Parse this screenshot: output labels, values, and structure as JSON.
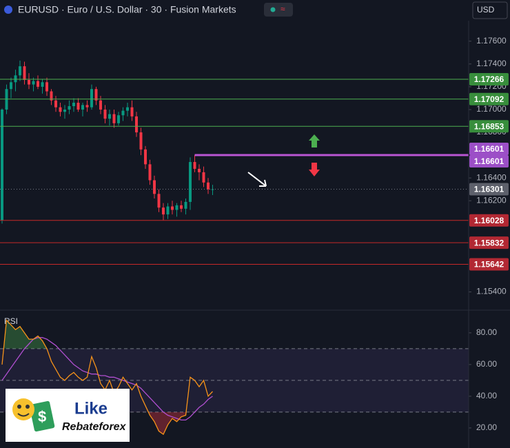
{
  "header": {
    "title": "EURUSD · Euro / U.S. Dollar · 30 · Fusion Markets",
    "currency": "USD"
  },
  "logo": {
    "line1": "Like",
    "line2": "Rebateforex"
  },
  "chart_data": [
    {
      "type": "candlestick",
      "up_color": "#089981",
      "down_color": "#f23645",
      "open": [
        1.1603,
        1.17,
        1.1718,
        1.1724,
        1.173,
        1.1738,
        1.1726,
        1.1722,
        1.1725,
        1.172,
        1.1724,
        1.1716,
        1.1708,
        1.1702,
        1.1698,
        1.17,
        1.1703,
        1.1706,
        1.17,
        1.1704,
        1.1702,
        1.1718,
        1.1708,
        1.17,
        1.1692,
        1.1696,
        1.1688,
        1.1695,
        1.1699,
        1.1702,
        1.1694,
        1.168,
        1.1665,
        1.1652,
        1.1638,
        1.1626,
        1.1614,
        1.1608,
        1.1615,
        1.1612,
        1.1616,
        1.1613,
        1.1619,
        1.1654,
        1.1648,
        1.1645,
        1.1636,
        1.163
      ],
      "high": [
        1.1701,
        1.1722,
        1.1728,
        1.1735,
        1.1743,
        1.1742,
        1.1732,
        1.1728,
        1.173,
        1.1727,
        1.1728,
        1.1718,
        1.1712,
        1.1706,
        1.1704,
        1.1708,
        1.171,
        1.171,
        1.1706,
        1.1708,
        1.1722,
        1.172,
        1.1712,
        1.1704,
        1.17,
        1.17,
        1.1698,
        1.1702,
        1.1706,
        1.1708,
        1.1698,
        1.1684,
        1.1668,
        1.1656,
        1.1642,
        1.163,
        1.1618,
        1.1618,
        1.162,
        1.1618,
        1.162,
        1.1622,
        1.1658,
        1.16601,
        1.1652,
        1.165,
        1.164,
        1.1634
      ],
      "low": [
        1.16,
        1.1696,
        1.171,
        1.1716,
        1.1725,
        1.1722,
        1.1718,
        1.1716,
        1.1718,
        1.1714,
        1.1712,
        1.1704,
        1.1698,
        1.1694,
        1.1692,
        1.1696,
        1.1698,
        1.1698,
        1.1694,
        1.1698,
        1.17,
        1.1704,
        1.1696,
        1.1688,
        1.1686,
        1.1684,
        1.1686,
        1.169,
        1.1694,
        1.169,
        1.1676,
        1.166,
        1.1648,
        1.1634,
        1.1622,
        1.161,
        1.1603,
        1.1604,
        1.1608,
        1.1606,
        1.161,
        1.1608,
        1.1612,
        1.1645,
        1.1638,
        1.1632,
        1.1626,
        1.1625
      ],
      "close": [
        1.17,
        1.1718,
        1.1724,
        1.173,
        1.1738,
        1.1726,
        1.1722,
        1.1725,
        1.172,
        1.1724,
        1.1716,
        1.1708,
        1.1702,
        1.1698,
        1.17,
        1.1703,
        1.1706,
        1.17,
        1.1704,
        1.1702,
        1.1718,
        1.1708,
        1.17,
        1.1692,
        1.1696,
        1.1688,
        1.1695,
        1.1699,
        1.1702,
        1.1694,
        1.168,
        1.1665,
        1.1652,
        1.1638,
        1.1626,
        1.1614,
        1.1608,
        1.1615,
        1.1612,
        1.1616,
        1.1613,
        1.1619,
        1.1654,
        1.1648,
        1.1645,
        1.1636,
        1.163,
        1.16301
      ],
      "ylim": [
        1.1524,
        1.1778
      ],
      "yticks": [
        {
          "value": 1.176,
          "label": "1.17600"
        },
        {
          "value": 1.174,
          "label": "1.17400"
        },
        {
          "value": 1.172,
          "label": "1.17200"
        },
        {
          "value": 1.17,
          "label": "1.17000"
        },
        {
          "value": 1.168,
          "label": "1.16800"
        },
        {
          "value": 1.164,
          "label": "1.16400"
        },
        {
          "value": 1.162,
          "label": "1.16200"
        },
        {
          "value": 1.154,
          "label": "1.15400"
        }
      ],
      "levels": [
        {
          "value": 1.17266,
          "label": "1.17266",
          "color": "#4caf50",
          "badge": "#388e3c",
          "style": "solid"
        },
        {
          "value": 1.17092,
          "label": "1.17092",
          "color": "#4caf50",
          "badge": "#388e3c",
          "style": "solid"
        },
        {
          "value": 1.16853,
          "label": "1.16853",
          "color": "#4caf50",
          "badge": "#388e3c",
          "style": "solid"
        },
        {
          "value": 1.16601,
          "label": "1.16601",
          "color": "#ba55d3",
          "badge": "#9c4fc7",
          "style": "thick"
        },
        {
          "value": 1.16301,
          "label": "1.16301",
          "color": "#787b86",
          "badge": "#5d606b",
          "style": "dotted"
        },
        {
          "value": 1.16028,
          "label": "1.16028",
          "color": "#c62828",
          "badge": "#b22833",
          "style": "solid"
        },
        {
          "value": 1.15832,
          "label": "1.15832",
          "color": "#c62828",
          "badge": "#b22833",
          "style": "solid"
        },
        {
          "value": 1.15642,
          "label": "1.15642",
          "color": "#c62828",
          "badge": "#b22833",
          "style": "solid"
        }
      ]
    },
    {
      "type": "line",
      "title": "RSI",
      "ylim": [
        11.7,
        94.3
      ],
      "yticks": [
        {
          "value": 80,
          "label": "80.00"
        },
        {
          "value": 60,
          "label": "60.00"
        },
        {
          "value": 40,
          "label": "40.00"
        },
        {
          "value": 20,
          "label": "20.00"
        }
      ],
      "band": [
        30,
        70
      ],
      "midline": 50,
      "series": [
        {
          "color": "#f7931a",
          "values": [
            60,
            88,
            85,
            82,
            84,
            80,
            76,
            76,
            78,
            75,
            70,
            62,
            57,
            52,
            50,
            53,
            55,
            52,
            50,
            52,
            65,
            58,
            48,
            44,
            50,
            42,
            46,
            52,
            48,
            44,
            48,
            40,
            34,
            28,
            24,
            18,
            16,
            22,
            26,
            24,
            27,
            28,
            52,
            50,
            46,
            50,
            40,
            43
          ]
        },
        {
          "color": "#b04fd0",
          "values": [
            50,
            54,
            58,
            62,
            66,
            70,
            73,
            76,
            77,
            77,
            76,
            74,
            72,
            69,
            66,
            63,
            60,
            58,
            56,
            55,
            54,
            54,
            53,
            53,
            52,
            52,
            51,
            50,
            49,
            48,
            47,
            45,
            42,
            39,
            36,
            33,
            30,
            28,
            27,
            26,
            25,
            25,
            27,
            30,
            33,
            35,
            38,
            40
          ]
        }
      ]
    }
  ]
}
